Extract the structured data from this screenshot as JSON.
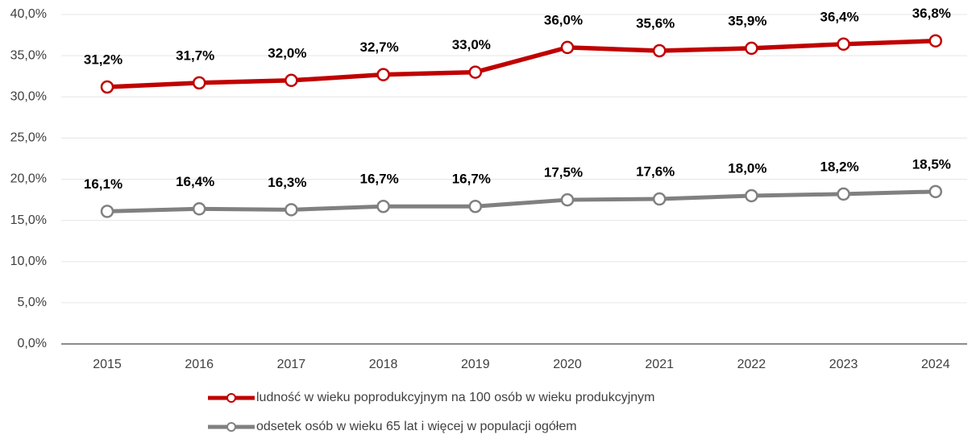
{
  "chart_data": {
    "type": "line",
    "categories": [
      "2015",
      "2016",
      "2017",
      "2018",
      "2019",
      "2020",
      "2021",
      "2022",
      "2023",
      "2024"
    ],
    "series": [
      {
        "name": "ludność w wieku poprodukcyjnym na 100 osób w wieku produkcyjnym",
        "color": "#c00000",
        "values": [
          31.2,
          31.7,
          32.0,
          32.7,
          33.0,
          36.0,
          35.6,
          35.9,
          36.4,
          36.8
        ],
        "value_labels": [
          "31,2%",
          "31,7%",
          "32,0%",
          "32,7%",
          "33,0%",
          "36,0%",
          "35,6%",
          "35,9%",
          "36,4%",
          "36,8%"
        ]
      },
      {
        "name": "odsetek osób w wieku 65 lat i więcej w populacji ogółem",
        "color": "#808080",
        "values": [
          16.1,
          16.4,
          16.3,
          16.7,
          16.7,
          17.5,
          17.6,
          18.0,
          18.2,
          18.5
        ],
        "value_labels": [
          "16,1%",
          "16,4%",
          "16,3%",
          "16,7%",
          "16,7%",
          "17,5%",
          "17,6%",
          "18,0%",
          "18,2%",
          "18,5%"
        ]
      }
    ],
    "ylim": [
      0,
      40
    ],
    "yticks": [
      {
        "value": 0,
        "label": "0,0%"
      },
      {
        "value": 5,
        "label": "5,0%"
      },
      {
        "value": 10,
        "label": "10,0%"
      },
      {
        "value": 15,
        "label": "15,0%"
      },
      {
        "value": 20,
        "label": "20,0%"
      },
      {
        "value": 25,
        "label": "25,0%"
      },
      {
        "value": 30,
        "label": "30,0%"
      },
      {
        "value": 35,
        "label": "35,0%"
      },
      {
        "value": 40,
        "label": "40,0%"
      }
    ],
    "grid": true,
    "legend": "bottom"
  }
}
